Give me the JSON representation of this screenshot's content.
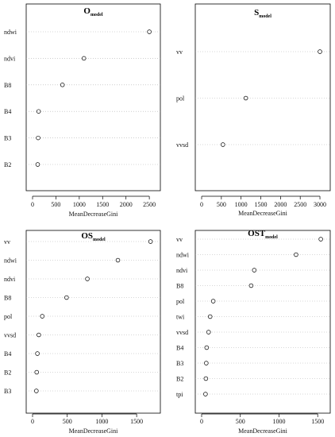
{
  "chart_data": [
    {
      "type": "scatter",
      "title": "O",
      "subtitle": "model",
      "xlabel": "MeanDecreaseGini",
      "xlim": [
        0,
        2600
      ],
      "xticks": [
        0,
        500,
        1000,
        1500,
        2000,
        2500
      ],
      "categories": [
        "ndwi",
        "ndvi",
        "B8",
        "B4",
        "B3",
        "B2"
      ],
      "values": [
        2500,
        1100,
        640,
        130,
        120,
        110
      ]
    },
    {
      "type": "scatter",
      "title": "S",
      "subtitle": "model",
      "xlabel": "MeanDecreaseGini",
      "xlim": [
        0,
        3100
      ],
      "xticks": [
        0,
        500,
        1000,
        1500,
        2000,
        2500,
        3000
      ],
      "categories": [
        "vv",
        "pol",
        "vvsd"
      ],
      "values": [
        3000,
        1120,
        540
      ]
    },
    {
      "type": "scatter",
      "title": "OS",
      "subtitle": "model",
      "xlabel": "MeanDecreaseGini",
      "xlim": [
        0,
        1750
      ],
      "xticks": [
        0,
        500,
        1000,
        1500
      ],
      "categories": [
        "vv",
        "ndwi",
        "ndvi",
        "B8",
        "pol",
        "vvsd",
        "B4",
        "B2",
        "B3"
      ],
      "values": [
        1700,
        1230,
        790,
        490,
        140,
        90,
        70,
        60,
        55
      ]
    },
    {
      "type": "scatter",
      "title": "OST",
      "subtitle": "model",
      "xlabel": "MeanDecreaseGini",
      "xlim": [
        0,
        1580
      ],
      "xticks": [
        0,
        500,
        1000,
        1500
      ],
      "categories": [
        "vv",
        "ndwi",
        "ndvi",
        "B8",
        "pol",
        "twi",
        "vvsd",
        "B4",
        "B3",
        "B2",
        "tpi"
      ],
      "values": [
        1540,
        1220,
        680,
        640,
        150,
        110,
        90,
        65,
        60,
        55,
        50
      ]
    }
  ]
}
